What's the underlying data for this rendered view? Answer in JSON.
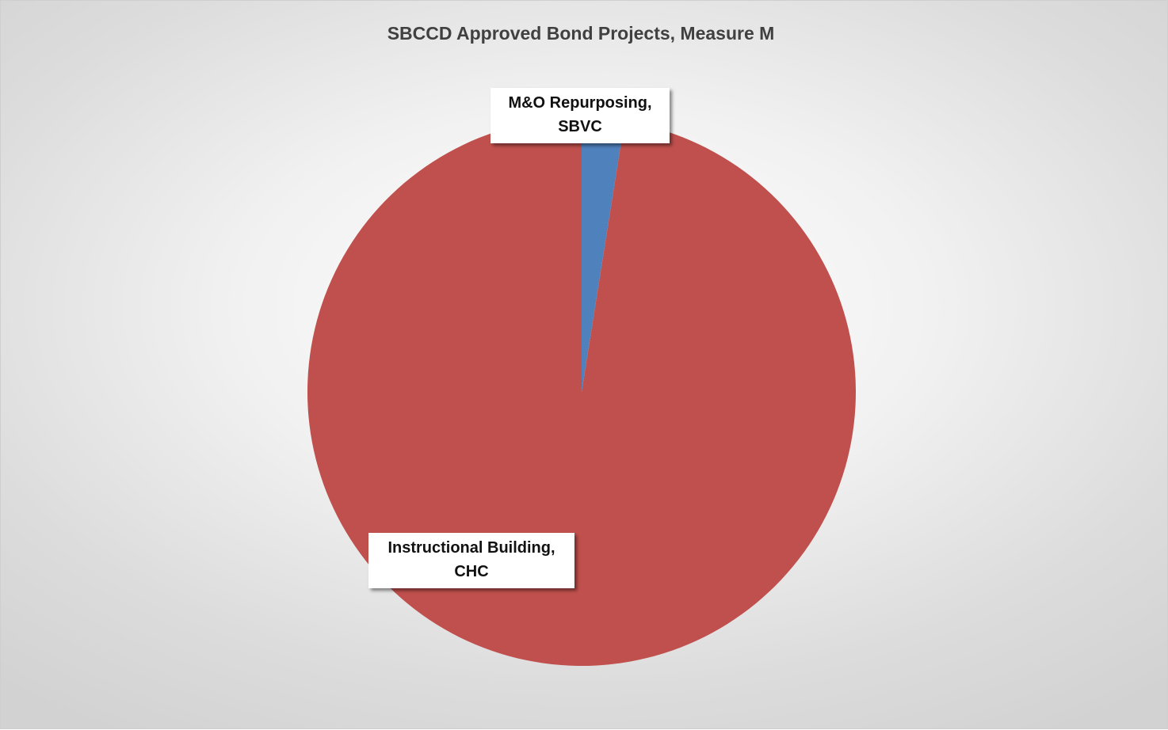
{
  "chart_data": {
    "type": "pie",
    "title": "SBCCD Approved Bond Projects, Measure M",
    "slices": [
      {
        "name": "M&O Repurposing, SBVC",
        "label_lines": [
          "M&O Repurposing,",
          "SBVC"
        ],
        "value": 2.5,
        "color": "#4f81bd"
      },
      {
        "name": "Instructional Building, CHC",
        "label_lines": [
          "Instructional Building,",
          "CHC"
        ],
        "value": 97.5,
        "color": "#c0504d"
      }
    ],
    "start_angle_deg": 0,
    "direction": "clockwise",
    "legend": "none"
  }
}
